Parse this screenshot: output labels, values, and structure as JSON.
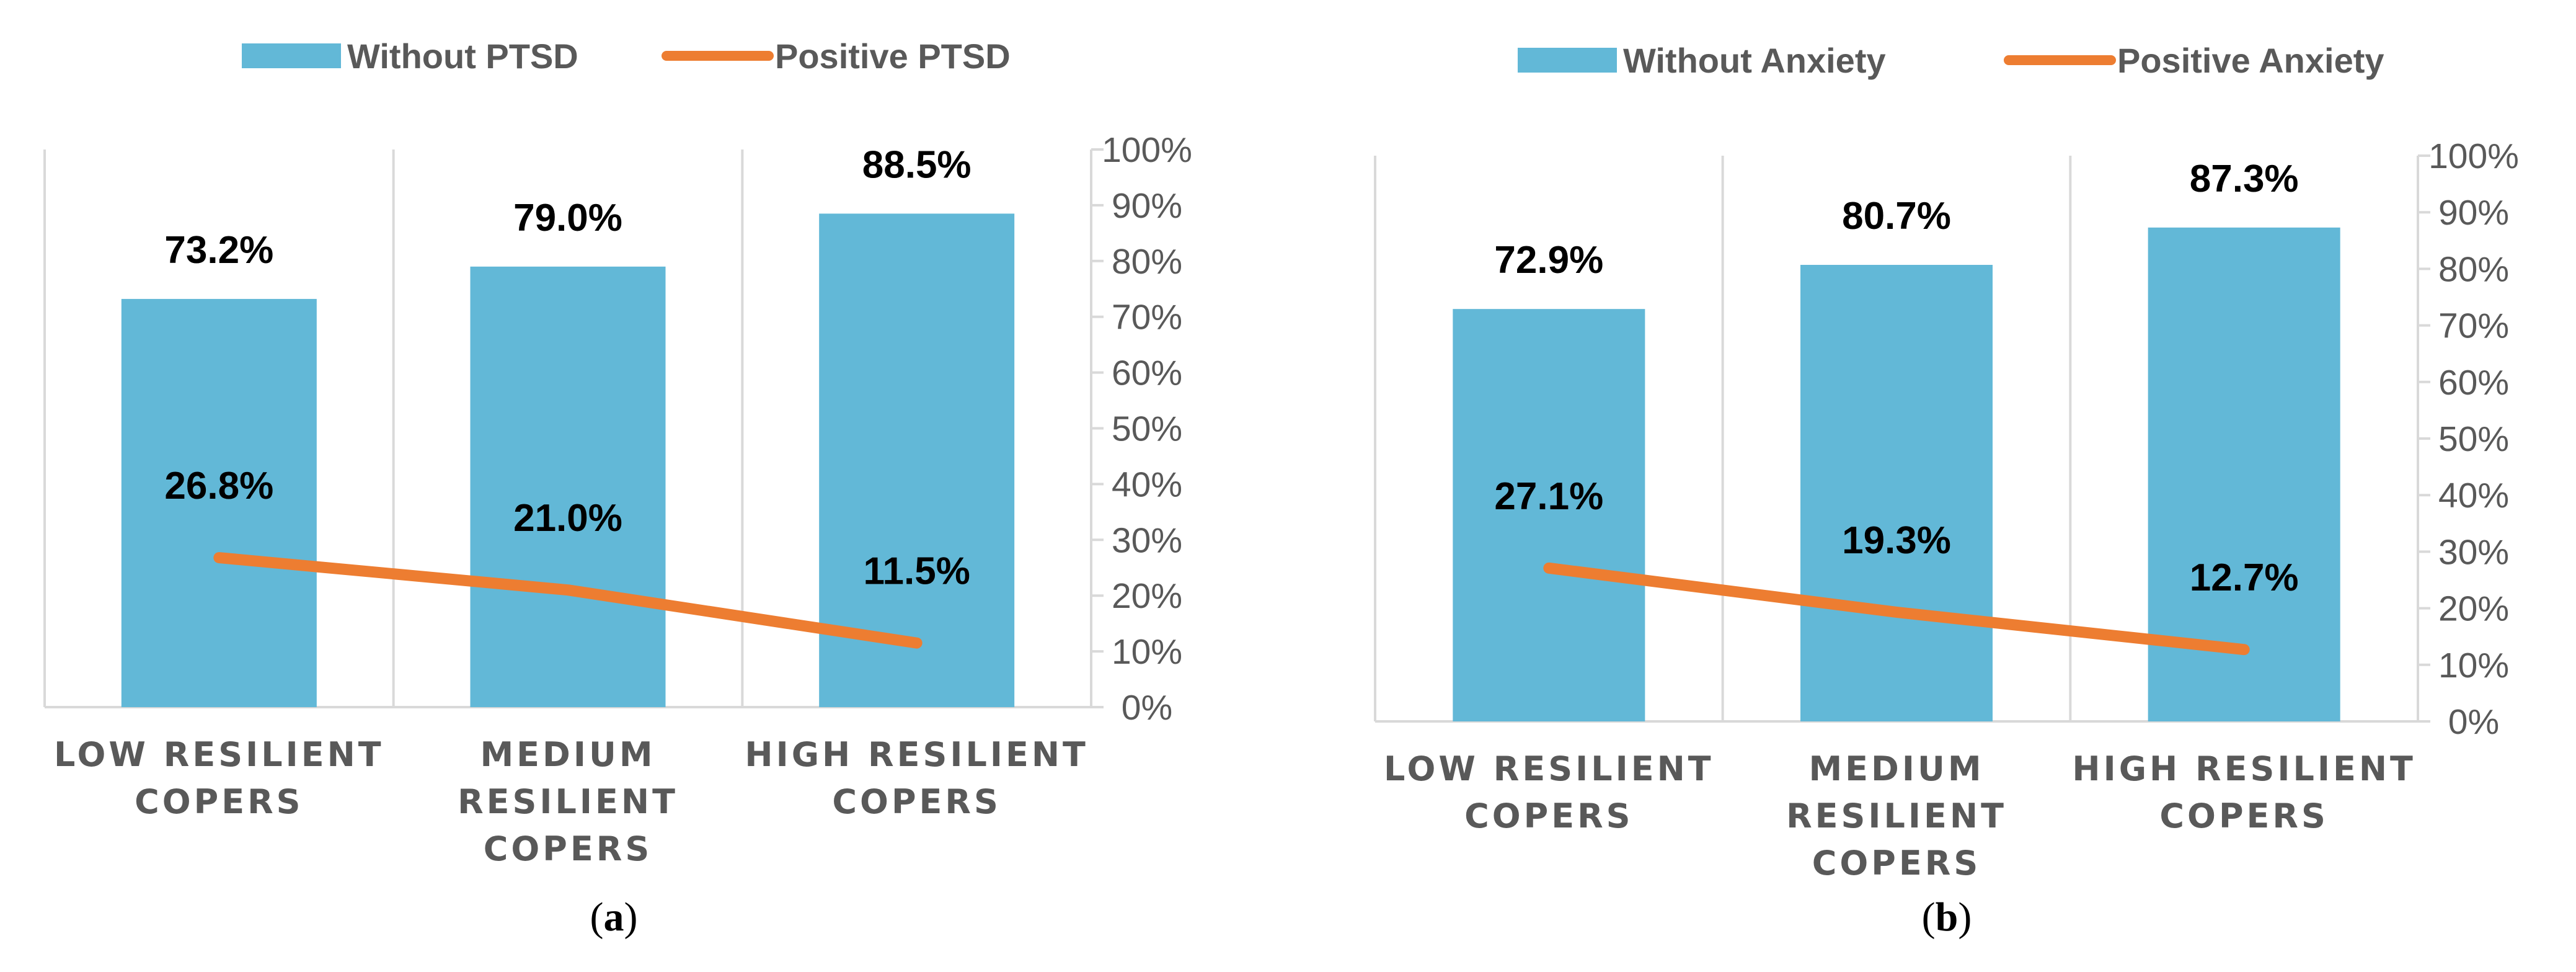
{
  "colors": {
    "bar": "#62B8D7",
    "line": "#ED7D31",
    "grid": "#D9D9D9",
    "axis_text": "#595959",
    "label": "#000000"
  },
  "chart_data": [
    {
      "type": "bar",
      "panel_id": "a",
      "caption": "(a)",
      "categories": [
        [
          "LOW RESILIENT",
          "COPERS"
        ],
        [
          "MEDIUM",
          "RESILIENT",
          "COPERS"
        ],
        [
          "HIGH RESILIENT",
          "COPERS"
        ]
      ],
      "series": [
        {
          "name": "Without PTSD",
          "kind": "bar",
          "values": [
            73.2,
            79.0,
            88.5
          ],
          "labels": [
            "73.2%",
            "79.0%",
            "88.5%"
          ]
        },
        {
          "name": "Positive PTSD",
          "kind": "line",
          "values": [
            26.8,
            21.0,
            11.5
          ],
          "labels": [
            "26.8%",
            "21.0%",
            "11.5%"
          ]
        }
      ],
      "y_axis": {
        "position": "right",
        "ylim": [
          0,
          100
        ],
        "ticks": [
          "0%",
          "10%",
          "20%",
          "30%",
          "40%",
          "50%",
          "60%",
          "70%",
          "80%",
          "90%",
          "100%"
        ]
      },
      "legend": "top",
      "grid": "vertical category separators"
    },
    {
      "type": "bar",
      "panel_id": "b",
      "caption": "(b)",
      "categories": [
        [
          "LOW RESILIENT",
          "COPERS"
        ],
        [
          "MEDIUM",
          "RESILIENT",
          "COPERS"
        ],
        [
          "HIGH RESILIENT",
          "COPERS"
        ]
      ],
      "series": [
        {
          "name": "Without Anxiety",
          "kind": "bar",
          "values": [
            72.9,
            80.7,
            87.3
          ],
          "labels": [
            "72.9%",
            "80.7%",
            "87.3%"
          ]
        },
        {
          "name": "Positive Anxiety",
          "kind": "line",
          "values": [
            27.1,
            19.3,
            12.7
          ],
          "labels": [
            "27.1%",
            "19.3%",
            "12.7%"
          ]
        }
      ],
      "y_axis": {
        "position": "right",
        "ylim": [
          0,
          100
        ],
        "ticks": [
          "0%",
          "10%",
          "20%",
          "30%",
          "40%",
          "50%",
          "60%",
          "70%",
          "80%",
          "90%",
          "100%"
        ]
      },
      "legend": "top",
      "grid": "vertical category separators"
    }
  ]
}
